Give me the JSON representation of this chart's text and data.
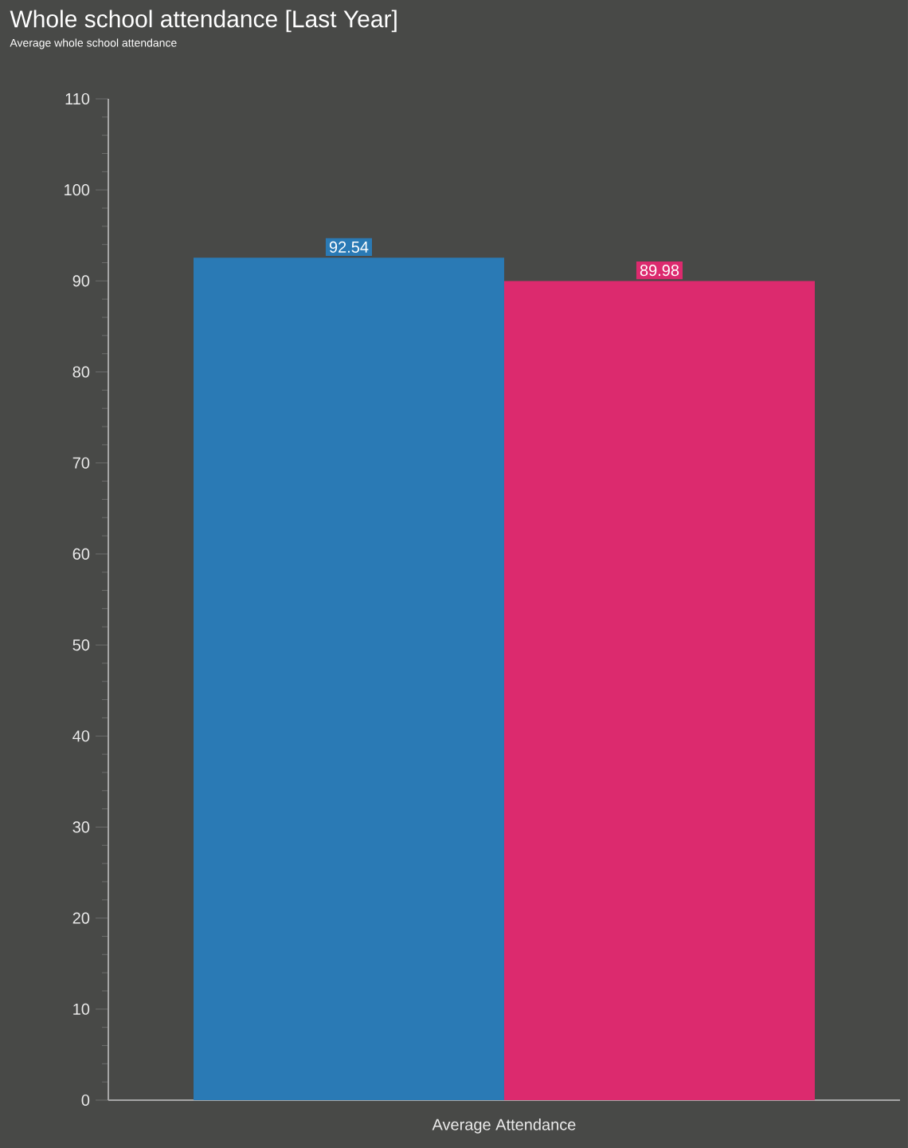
{
  "chart_data": {
    "type": "bar",
    "title": "Whole school attendance [Last Year]",
    "subtitle": "Average whole school attendance",
    "categories": [
      "Average Attendance"
    ],
    "series": [
      {
        "color": "#2a7ab5",
        "values": [
          92.54
        ]
      },
      {
        "color": "#dc2a6e",
        "values": [
          89.98
        ]
      }
    ],
    "ylim": [
      0,
      110
    ],
    "yticks": [
      0,
      10,
      20,
      30,
      40,
      50,
      60,
      70,
      80,
      90,
      100,
      110
    ],
    "data_labels": true
  }
}
